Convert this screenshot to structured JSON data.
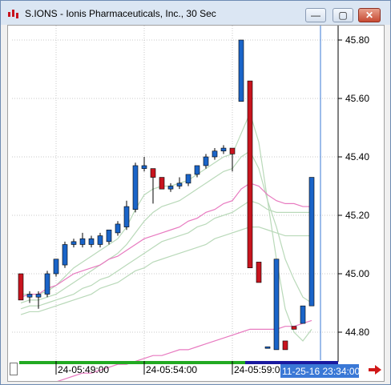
{
  "window": {
    "title": "S.IONS - Ionis Pharmaceuticals, Inc., 30 Sec",
    "min_icon": "minimize-icon",
    "max_icon": "maximize-icon",
    "close_icon": "close-icon",
    "min_glyph": "—",
    "max_glyph": "▢",
    "close_glyph": "✕"
  },
  "colors": {
    "up": "#1a64c8",
    "down": "#c8141e",
    "ma_green": "#b9d9b9",
    "ma_pink": "#e87ac0",
    "cursor_line": "#3a78d6",
    "time_label_bg": "#3a78d6"
  },
  "chart_data": {
    "type": "candlestick",
    "symbol": "S.IONS",
    "interval": "30 Sec",
    "y_ticks": [
      "45.80",
      "45.60",
      "45.40",
      "45.20",
      "45.00",
      "44.80"
    ],
    "y_tick_values": [
      45.8,
      45.6,
      45.4,
      45.2,
      45.0,
      44.8
    ],
    "ylim": [
      44.72,
      45.88
    ],
    "x_labels": [
      "24-05:49:00",
      "24-05:54:00",
      "24-05:59:00"
    ],
    "cursor_time_label": "11-25-16 23:34:00",
    "candles": [
      {
        "o": 45.0,
        "h": 45.0,
        "l": 44.91,
        "c": 44.91
      },
      {
        "o": 44.92,
        "h": 44.94,
        "l": 44.9,
        "c": 44.93
      },
      {
        "o": 44.92,
        "h": 44.94,
        "l": 44.88,
        "c": 44.93
      },
      {
        "o": 44.93,
        "h": 45.01,
        "l": 44.92,
        "c": 45.0
      },
      {
        "o": 45.0,
        "h": 45.05,
        "l": 44.99,
        "c": 45.05
      },
      {
        "o": 45.03,
        "h": 45.11,
        "l": 45.02,
        "c": 45.1
      },
      {
        "o": 45.1,
        "h": 45.12,
        "l": 45.09,
        "c": 45.11
      },
      {
        "o": 45.1,
        "h": 45.14,
        "l": 45.09,
        "c": 45.12
      },
      {
        "o": 45.1,
        "h": 45.13,
        "l": 45.09,
        "c": 45.12
      },
      {
        "o": 45.1,
        "h": 45.14,
        "l": 45.09,
        "c": 45.13
      },
      {
        "o": 45.11,
        "h": 45.15,
        "l": 45.1,
        "c": 45.15
      },
      {
        "o": 45.14,
        "h": 45.18,
        "l": 45.13,
        "c": 45.17
      },
      {
        "o": 45.16,
        "h": 45.25,
        "l": 45.15,
        "c": 45.23
      },
      {
        "o": 45.22,
        "h": 45.38,
        "l": 45.21,
        "c": 45.37
      },
      {
        "o": 45.36,
        "h": 45.4,
        "l": 45.35,
        "c": 45.37
      },
      {
        "o": 45.36,
        "h": 45.36,
        "l": 45.24,
        "c": 45.33
      },
      {
        "o": 45.33,
        "h": 45.33,
        "l": 45.29,
        "c": 45.29
      },
      {
        "o": 45.29,
        "h": 45.31,
        "l": 45.28,
        "c": 45.3
      },
      {
        "o": 45.3,
        "h": 45.33,
        "l": 45.29,
        "c": 45.31
      },
      {
        "o": 45.31,
        "h": 45.34,
        "l": 45.3,
        "c": 45.34
      },
      {
        "o": 45.34,
        "h": 45.37,
        "l": 45.33,
        "c": 45.37
      },
      {
        "o": 45.37,
        "h": 45.41,
        "l": 45.36,
        "c": 45.4
      },
      {
        "o": 45.4,
        "h": 45.43,
        "l": 45.39,
        "c": 45.42
      },
      {
        "o": 45.42,
        "h": 45.44,
        "l": 45.41,
        "c": 45.43
      },
      {
        "o": 45.43,
        "h": 45.43,
        "l": 45.35,
        "c": 45.41
      },
      {
        "o": 45.59,
        "h": 45.8,
        "l": 45.59,
        "c": 45.8
      },
      {
        "o": 45.66,
        "h": 45.66,
        "l": 45.02,
        "c": 45.02
      },
      {
        "o": 45.04,
        "h": 45.04,
        "l": 44.97,
        "c": 44.97
      },
      {
        "o": 44.75,
        "h": 44.75,
        "l": 44.75,
        "c": 44.75
      },
      {
        "o": 44.74,
        "h": 45.05,
        "l": 44.74,
        "c": 45.05
      },
      {
        "o": 44.77,
        "h": 44.77,
        "l": 44.74,
        "c": 44.74
      },
      {
        "o": 44.82,
        "h": 44.82,
        "l": 44.81,
        "c": 44.81
      },
      {
        "o": 44.83,
        "h": 44.89,
        "l": 44.83,
        "c": 44.89
      },
      {
        "o": 44.89,
        "h": 45.33,
        "l": 44.89,
        "c": 45.33
      }
    ],
    "moving_averages": [
      {
        "color": "green",
        "values": [
          44.93,
          44.93,
          44.93,
          44.94,
          44.96,
          44.99,
          45.02,
          45.04,
          45.06,
          45.08,
          45.1,
          45.12,
          45.16,
          45.22,
          45.27,
          45.29,
          45.3,
          45.3,
          45.31,
          45.32,
          45.34,
          45.36,
          45.38,
          45.4,
          45.41,
          45.48,
          45.55,
          45.45,
          45.25,
          45.05,
          44.88,
          44.8,
          44.77,
          44.81
        ]
      },
      {
        "color": "green",
        "values": [
          44.9,
          44.91,
          44.91,
          44.92,
          44.93,
          44.95,
          44.97,
          44.99,
          45.01,
          45.03,
          45.05,
          45.07,
          45.1,
          45.14,
          45.18,
          45.21,
          45.23,
          45.24,
          45.25,
          45.27,
          45.29,
          45.31,
          45.33,
          45.35,
          45.36,
          45.4,
          45.42,
          45.36,
          45.25,
          45.16,
          45.05,
          44.98,
          44.92,
          44.9
        ]
      },
      {
        "color": "green",
        "values": [
          44.88,
          44.89,
          44.89,
          44.9,
          44.91,
          44.92,
          44.93,
          44.95,
          44.96,
          44.98,
          44.99,
          45.01,
          45.03,
          45.05,
          45.07,
          45.09,
          45.11,
          45.12,
          45.13,
          45.14,
          45.16,
          45.17,
          45.19,
          45.2,
          45.21,
          45.23,
          45.25,
          45.24,
          45.22,
          45.21,
          45.21,
          45.21,
          45.21,
          45.21
        ]
      },
      {
        "color": "green",
        "values": [
          44.86,
          44.87,
          44.87,
          44.88,
          44.89,
          44.9,
          44.91,
          44.92,
          44.93,
          44.95,
          44.96,
          44.97,
          44.99,
          45.01,
          45.02,
          45.04,
          45.05,
          45.06,
          45.07,
          45.08,
          45.09,
          45.1,
          45.12,
          45.13,
          45.14,
          45.15,
          45.16,
          45.16,
          45.15,
          45.14,
          45.13,
          45.13,
          45.13,
          45.13
        ]
      },
      {
        "color": "pink",
        "values": [
          44.92,
          44.93,
          44.93,
          44.95,
          44.96,
          44.98,
          45.0,
          45.01,
          45.02,
          45.03,
          45.05,
          45.06,
          45.08,
          45.1,
          45.12,
          45.13,
          45.14,
          45.15,
          45.16,
          45.18,
          45.19,
          45.21,
          45.22,
          45.24,
          45.25,
          45.29,
          45.31,
          45.3,
          45.27,
          45.25,
          45.24,
          45.24,
          45.23,
          45.23
        ]
      },
      {
        "color": "pink",
        "values": [
          44.6,
          44.61,
          44.61,
          44.62,
          44.63,
          44.64,
          44.65,
          44.66,
          44.66,
          44.67,
          44.68,
          44.69,
          44.69,
          44.7,
          44.71,
          44.72,
          44.72,
          44.73,
          44.74,
          44.74,
          44.75,
          44.76,
          44.77,
          44.78,
          44.79,
          44.8,
          44.81,
          44.81,
          44.81,
          44.81,
          44.82,
          44.82,
          44.83,
          44.84
        ]
      }
    ]
  }
}
